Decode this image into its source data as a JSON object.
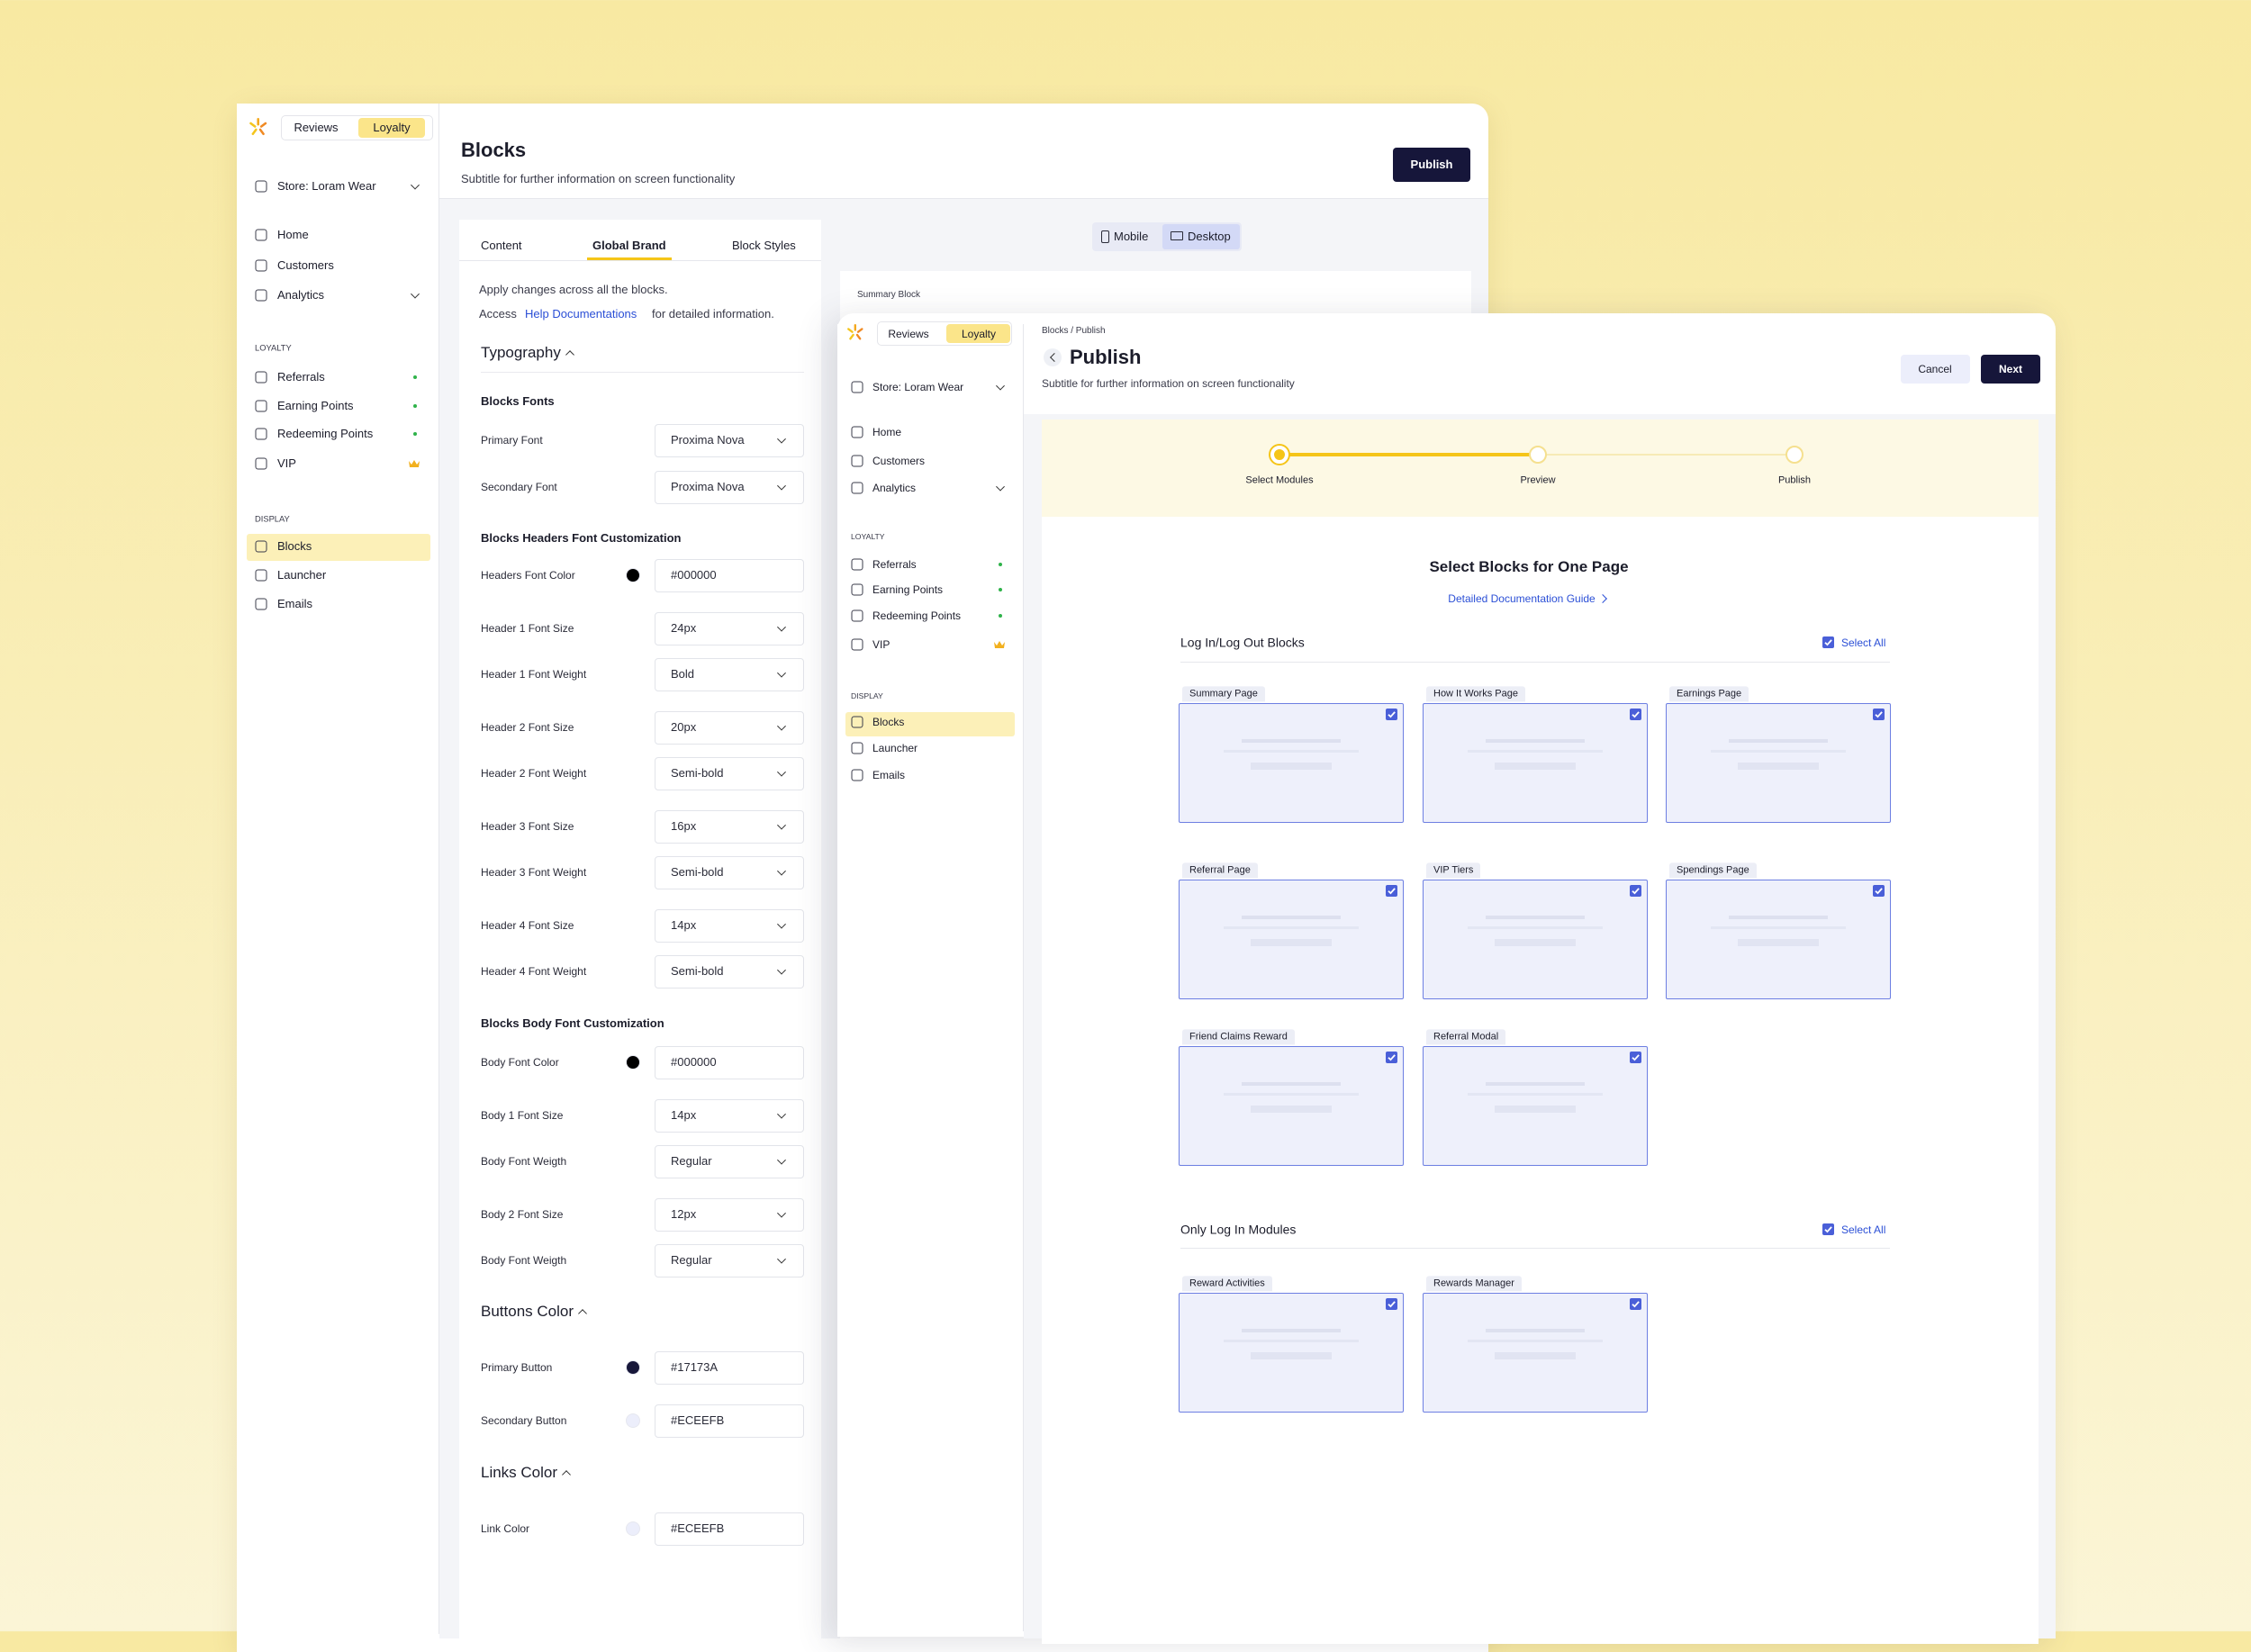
{
  "back_window": {
    "sidebar": {
      "tabs": [
        "Reviews",
        "Loyalty"
      ],
      "store": "Store: Loram Wear",
      "nav": [
        "Home",
        "Customers",
        "Analytics"
      ],
      "loyalty_heading": "LOYALTY",
      "loyalty_nav": [
        "Referrals",
        "Earning Points",
        "Redeeming Points",
        "VIP"
      ],
      "display_heading": "DISPLAY",
      "display_nav": [
        "Blocks",
        "Launcher",
        "Emails"
      ]
    },
    "header": {
      "title": "Blocks",
      "subtitle": "Subtitle for further information on screen functionality",
      "button": "Publish"
    },
    "panel": {
      "tabs": [
        "Content",
        "Global Brand",
        "Block Styles"
      ],
      "intro": "Apply changes across all the blocks.",
      "access": {
        "prefix": "Access",
        "link": "Help Documentations",
        "suffix": "for detailed information."
      },
      "sections": [
        {
          "title": "Typography",
          "groups": [
            {
              "heading": "Blocks Fonts",
              "fields": [
                {
                  "label": "Primary Font",
                  "value": "Proxima Nova"
                },
                {
                  "label": "Secondary Font",
                  "value": "Proxima Nova"
                }
              ]
            },
            {
              "heading": "Blocks Headers Font Customization",
              "fields": [
                {
                  "label": "Headers  Font Color",
                  "value": "#000000"
                },
                {
                  "label": "Header 1 Font Size",
                  "value": "24px"
                },
                {
                  "label": "Header 1 Font  Weight",
                  "value": "Bold"
                },
                {
                  "label": "Header 2 Font Size",
                  "value": "20px"
                },
                {
                  "label": "Header 2 Font  Weight",
                  "value": "Semi-bold"
                },
                {
                  "label": "Header 3 Font Size",
                  "value": "16px"
                },
                {
                  "label": "Header 3 Font  Weight",
                  "value": "Semi-bold"
                },
                {
                  "label": "Header 4 Font Size",
                  "value": "14px"
                },
                {
                  "label": "Header 4 Font  Weight",
                  "value": "Semi-bold"
                }
              ]
            },
            {
              "heading": "Blocks Body Font Customization",
              "fields": [
                {
                  "label": "Body Font Color",
                  "value": "#000000"
                },
                {
                  "label": "Body 1 Font Size",
                  "value": "14px"
                },
                {
                  "label": "Body Font Weigth",
                  "value": "Regular"
                },
                {
                  "label": "Body 2 Font Size",
                  "value": "12px"
                },
                {
                  "label": "Body Font Weigth",
                  "value": "Regular"
                }
              ]
            }
          ]
        },
        {
          "title": "Buttons Color",
          "groups": [
            {
              "fields": [
                {
                  "label": "Primary Button",
                  "value": "#17173A"
                },
                {
                  "label": "Secondary Button",
                  "value": "#ECEEFB"
                }
              ]
            }
          ]
        },
        {
          "title": "Links Color",
          "groups": [
            {
              "fields": [
                {
                  "label": "Link Color",
                  "value": "#ECEEFB"
                }
              ]
            }
          ]
        }
      ]
    },
    "preview": {
      "toggle": [
        "Mobile",
        "Desktop"
      ],
      "block_label": "Summary Block"
    }
  },
  "front_window": {
    "sidebar": {
      "tabs": [
        "Reviews",
        "Loyalty"
      ],
      "store": "Store: Loram Wear",
      "nav": [
        "Home",
        "Customers",
        "Analytics"
      ],
      "loyalty_heading": "LOYALTY",
      "loyalty_nav": [
        "Referrals",
        "Earning Points",
        "Redeeming Points",
        "VIP"
      ],
      "display_heading": "DISPLAY",
      "display_nav": [
        "Blocks",
        "Launcher",
        "Emails"
      ]
    },
    "header": {
      "breadcrumb": "Blocks / Publish",
      "title": "Publish",
      "subtitle": "Subtitle for further information on screen functionality",
      "buttons": [
        "Cancel",
        "Next"
      ]
    },
    "stepper": {
      "steps": [
        "Select Modules",
        "Preview",
        "Publish"
      ]
    },
    "content": {
      "title": "Select Blocks for One Page",
      "link": "Detailed Documentation Guide",
      "groups": [
        {
          "title": "Log In/Log Out Blocks",
          "select_all": "Select All",
          "cards": [
            "Summary Page",
            "How It Works Page",
            "Earnings Page",
            "Referral Page",
            "VIP Tiers",
            "Spendings Page",
            "Friend Claims Reward",
            "Referral Modal"
          ]
        },
        {
          "title": "Only Log In Modules",
          "select_all": "Select All",
          "cards": [
            "Reward Activities",
            "Rewards Manager"
          ]
        }
      ]
    }
  }
}
